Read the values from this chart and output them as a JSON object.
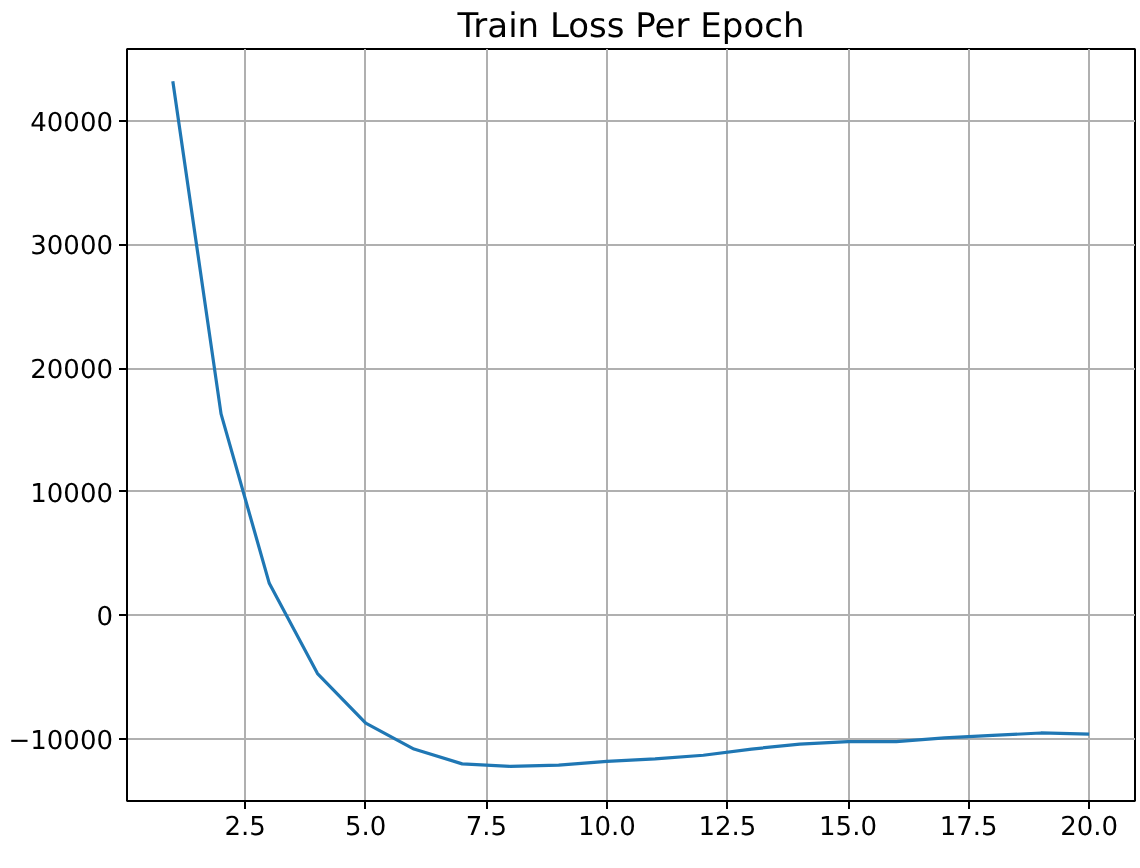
{
  "chart_data": {
    "type": "line",
    "title": "Train Loss Per Epoch",
    "x": [
      1,
      2,
      3,
      4,
      5,
      6,
      7,
      8,
      9,
      10,
      11,
      12,
      13,
      14,
      15,
      16,
      17,
      18,
      19,
      20
    ],
    "series": [
      {
        "color": "#1f77b4",
        "values": [
          43200,
          16300,
          2600,
          -4700,
          -8700,
          -10800,
          -12000,
          -12200,
          -12100,
          -11800,
          -11600,
          -11300,
          -10800,
          -10400,
          -10200,
          -10200,
          -9900,
          -9700,
          -9500,
          -9600
        ]
      }
    ],
    "xlim": [
      0.05,
      20.95
    ],
    "ylim": [
      -15000,
      45800
    ],
    "xticks": [
      2.5,
      {
        "value": 5,
        "label": "5.0"
      },
      7.5,
      {
        "value": 10,
        "label": "10.0"
      },
      12.5,
      {
        "value": 15,
        "label": "15.0"
      },
      17.5,
      {
        "value": 20,
        "label": "20.0"
      }
    ],
    "yticks": [
      {
        "value": -10000,
        "label": "−10000"
      },
      0,
      10000,
      20000,
      30000,
      40000
    ],
    "grid": true
  }
}
